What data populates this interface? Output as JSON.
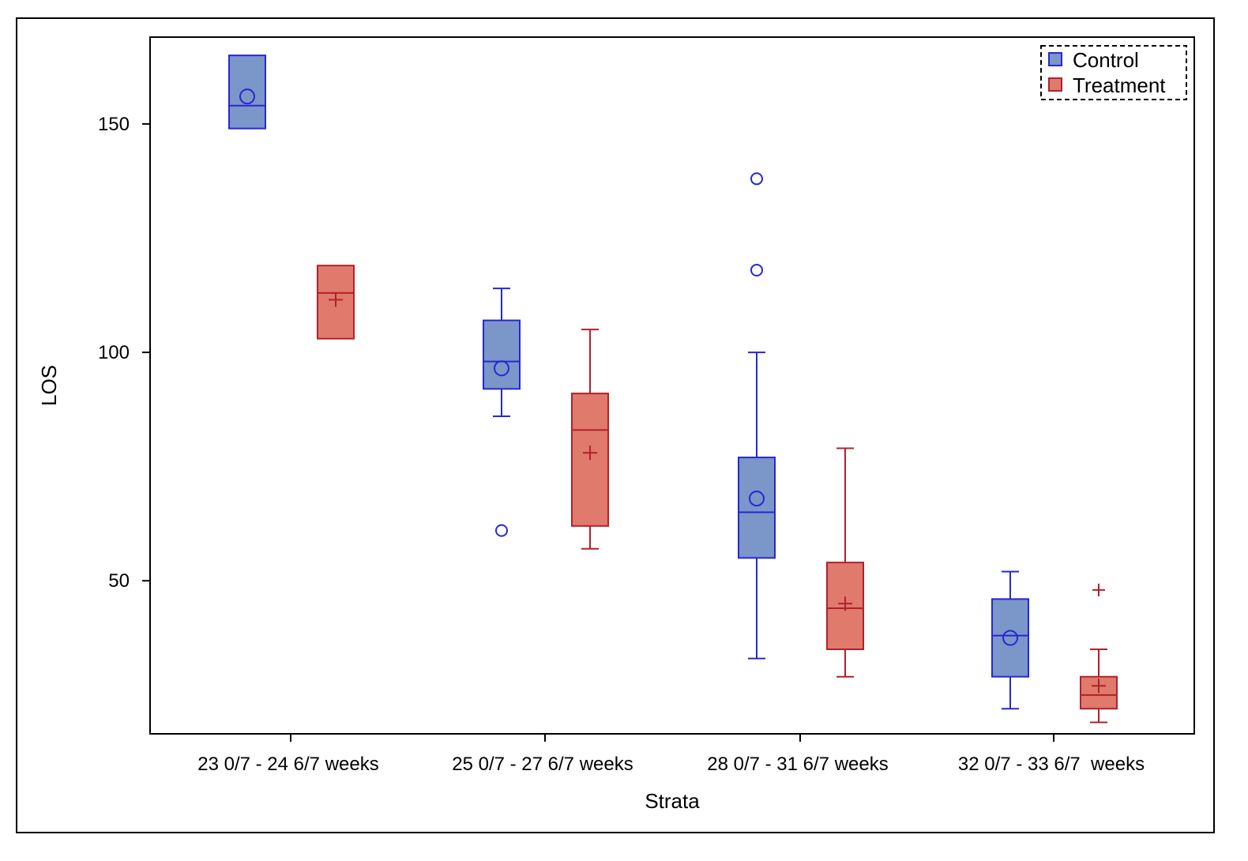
{
  "chart_data": {
    "type": "boxplot",
    "title": "",
    "xlabel": "Strata",
    "ylabel": "LOS",
    "ylim": [
      16.5,
      169
    ],
    "yticks": [
      50,
      100,
      150
    ],
    "ytick_labels": [
      "50",
      "100",
      "150"
    ],
    "grid": false,
    "legend_position": "top-right",
    "categories": [
      "23 0/7 - 24 6/7 weeks",
      "25 0/7 - 27 6/7 weeks",
      "28 0/7 - 31 6/7 weeks",
      "32 0/7 - 33 6/7  weeks"
    ],
    "series": [
      {
        "name": "Control",
        "fill_color": "#7b96c8",
        "line_color": "#2727d4",
        "mean_marker": "circle",
        "boxes": [
          {
            "category": "23 0/7 - 24 6/7 weeks",
            "q1": 149,
            "median": 154,
            "q3": 165,
            "whisker_low": 149,
            "whisker_high": 165,
            "mean": 156,
            "outliers": []
          },
          {
            "category": "25 0/7 - 27 6/7 weeks",
            "q1": 92,
            "median": 98,
            "q3": 107,
            "whisker_low": 86,
            "whisker_high": 114,
            "mean": 96.5,
            "outliers": [
              61
            ]
          },
          {
            "category": "28 0/7 - 31 6/7 weeks",
            "q1": 55,
            "median": 65,
            "q3": 77,
            "whisker_low": 33,
            "whisker_high": 100,
            "mean": 68,
            "outliers": [
              118,
              138
            ]
          },
          {
            "category": "32 0/7 - 33 6/7  weeks",
            "q1": 29,
            "median": 38,
            "q3": 46,
            "whisker_low": 22,
            "whisker_high": 52,
            "mean": 37.5,
            "outliers": []
          }
        ]
      },
      {
        "name": "Treatment",
        "fill_color": "#df7a6c",
        "line_color": "#b3202c",
        "mean_marker": "plus",
        "boxes": [
          {
            "category": "23 0/7 - 24 6/7 weeks",
            "q1": 103,
            "median": 113,
            "q3": 119,
            "whisker_low": 103,
            "whisker_high": 119,
            "mean": 111.5,
            "outliers": []
          },
          {
            "category": "25 0/7 - 27 6/7 weeks",
            "q1": 62,
            "median": 83,
            "q3": 91,
            "whisker_low": 57,
            "whisker_high": 105,
            "mean": 78,
            "outliers": []
          },
          {
            "category": "28 0/7 - 31 6/7 weeks",
            "q1": 35,
            "median": 44,
            "q3": 54,
            "whisker_low": 29,
            "whisker_high": 79,
            "mean": 45,
            "outliers": []
          },
          {
            "category": "32 0/7 - 33 6/7  weeks",
            "q1": 22,
            "median": 25,
            "q3": 29,
            "whisker_low": 19,
            "whisker_high": 35,
            "mean": 27,
            "outliers": [
              48
            ]
          }
        ]
      }
    ]
  }
}
